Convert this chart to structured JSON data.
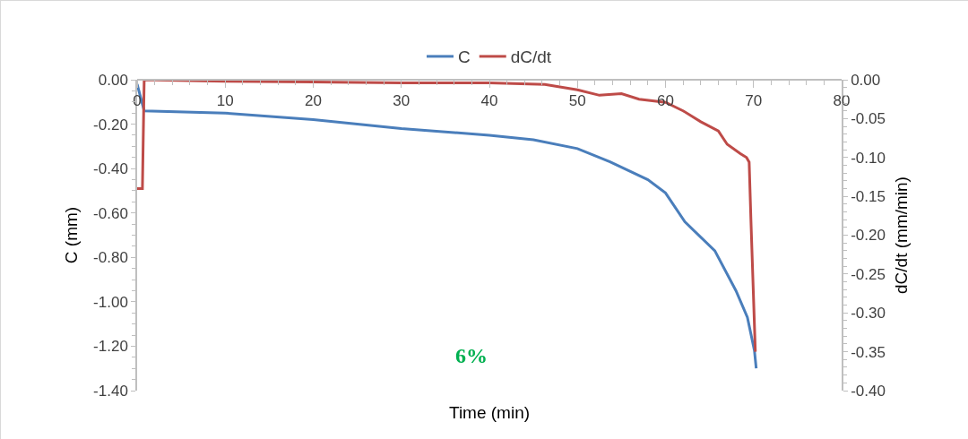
{
  "chart_data": {
    "type": "line",
    "xlabel": "Time (min)",
    "ylabel": "C (mm)",
    "y2label": "dC/dt (mm/min)",
    "xlim": [
      0,
      80
    ],
    "xticks": [
      0,
      10,
      20,
      30,
      40,
      50,
      60,
      70,
      80
    ],
    "ylim": [
      -1.4,
      0
    ],
    "yticks": [
      {
        "value": -1.4,
        "label": "-1.40"
      },
      {
        "value": -1.2,
        "label": "-1.20"
      },
      {
        "value": -1,
        "label": "-1.00"
      },
      {
        "value": -0.8,
        "label": "-0.80"
      },
      {
        "value": -0.6,
        "label": "-0.60"
      },
      {
        "value": -0.4,
        "label": "-0.40"
      },
      {
        "value": -0.2,
        "label": "-0.20"
      },
      {
        "value": 0,
        "label": "0.00"
      }
    ],
    "y2lim": [
      -0.4,
      0
    ],
    "y2ticks": [
      {
        "value": -0.4,
        "label": "-0.40"
      },
      {
        "value": -0.35,
        "label": "-0.35"
      },
      {
        "value": -0.3,
        "label": "-0.30"
      },
      {
        "value": -0.25,
        "label": "-0.25"
      },
      {
        "value": -0.2,
        "label": "-0.20"
      },
      {
        "value": -0.15,
        "label": "-0.15"
      },
      {
        "value": -0.1,
        "label": "-0.10"
      },
      {
        "value": -0.05,
        "label": "-0.05"
      },
      {
        "value": 0,
        "label": "0.00"
      }
    ],
    "grid": false,
    "legend": "top",
    "marker": "none",
    "line_style": "solid",
    "annotations": [
      "6%"
    ],
    "series": [
      {
        "name": "C",
        "color": "#4a7ebb",
        "x": [
          0,
          0.8,
          10,
          20,
          30,
          40,
          45,
          50,
          53.7,
          58,
          60,
          62.2,
          65.6,
          68,
          69.3,
          70.1,
          70.3
        ],
        "values": [
          -0.02,
          -0.14,
          -0.15,
          -0.18,
          -0.22,
          -0.25,
          -0.27,
          -0.31,
          -0.37,
          -0.45,
          -0.51,
          -0.64,
          -0.77,
          -0.95,
          -1.07,
          -1.22,
          -1.3
        ]
      },
      {
        "name": "dC/dt",
        "color": "#be4b48",
        "axis": "y2",
        "x": [
          0,
          0.6,
          0.8,
          10,
          20,
          30,
          40,
          46.3,
          50,
          52.5,
          55,
          57,
          60,
          62,
          64,
          66,
          67,
          68.5,
          69.2,
          69.5,
          69.7,
          70.2
        ],
        "values": [
          -0.14,
          -0.14,
          0,
          -0.002,
          -0.003,
          -0.004,
          -0.004,
          -0.006,
          -0.013,
          -0.02,
          -0.018,
          -0.025,
          -0.029,
          -0.04,
          -0.054,
          -0.066,
          -0.083,
          -0.095,
          -0.1,
          -0.106,
          -0.18,
          -0.35
        ]
      }
    ]
  }
}
